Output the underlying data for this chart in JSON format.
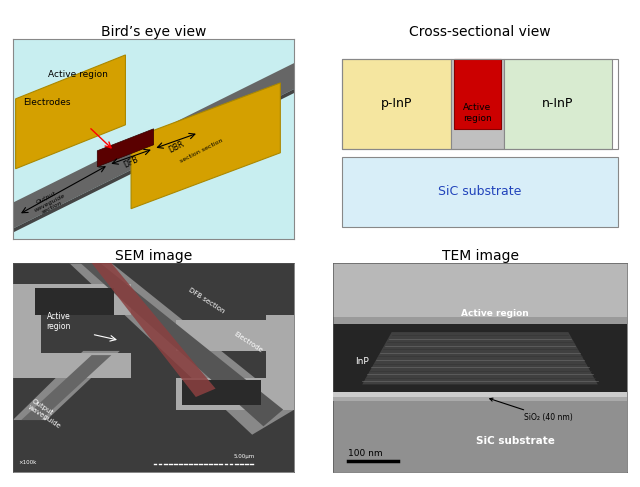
{
  "title_birds_eye": "Bird’s eye view",
  "title_cross": "Cross-sectional view",
  "title_sem": "SEM image",
  "title_tem": "TEM image",
  "cross_colors": {
    "p_inp": "#F5E6A0",
    "n_inp": "#D8EBD0",
    "active": "#CC0000",
    "waveguide_gray": "#C0C0C0",
    "sic": "#D8EEF8",
    "border": "#888888"
  },
  "birds_colors": {
    "background": "#C8EEF0",
    "electrode": "#D4A000",
    "waveguide_outer": "#777777",
    "waveguide_inner": "#444444",
    "active": "#5A0000"
  }
}
